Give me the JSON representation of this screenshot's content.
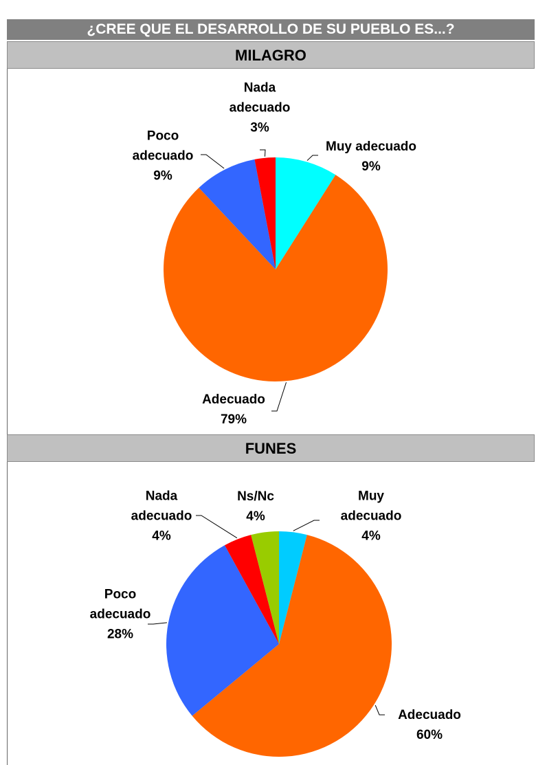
{
  "header": {
    "title": "¿CREE QUE EL DESARROLLO DE SU PUEBLO ES...?"
  },
  "chart_data": [
    {
      "type": "pie",
      "title": "MILAGRO",
      "categories": [
        "Muy adecuado",
        "Adecuado",
        "Poco adecuado",
        "Nada adecuado"
      ],
      "values": [
        9,
        79,
        9,
        3
      ],
      "value_labels": [
        "9%",
        "79%",
        "9%",
        "3%"
      ],
      "colors": [
        "#00ffff",
        "#ff6600",
        "#3366ff",
        "#ff0000"
      ]
    },
    {
      "type": "pie",
      "title": "FUNES",
      "categories": [
        "Muy adecuado",
        "Adecuado",
        "Poco adecuado",
        "Nada adecuado",
        "Ns/Nc"
      ],
      "values": [
        4,
        60,
        28,
        4,
        4
      ],
      "value_labels": [
        "4%",
        "60%",
        "28%",
        "4%",
        "4%"
      ],
      "colors": [
        "#00ccff",
        "#ff6600",
        "#3366ff",
        "#ff0000",
        "#99cc00"
      ]
    }
  ]
}
